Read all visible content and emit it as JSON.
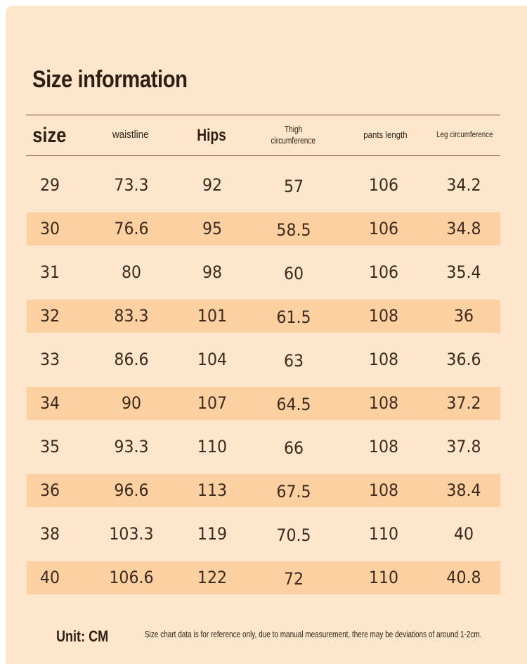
{
  "title": "Size information",
  "columns": {
    "size": "size",
    "waistline": "waistline",
    "hips": "Hips",
    "thigh_line1": "Thigh",
    "thigh_line2": "circumference",
    "pants_length": "pants length",
    "leg": "Leg circumference"
  },
  "rows": [
    {
      "size": "29",
      "waistline": "73.3",
      "hips": "92",
      "thigh": "57",
      "pants_length": "106",
      "leg": "34.2"
    },
    {
      "size": "30",
      "waistline": "76.6",
      "hips": "95",
      "thigh": "58.5",
      "pants_length": "106",
      "leg": "34.8"
    },
    {
      "size": "31",
      "waistline": "80",
      "hips": "98",
      "thigh": "60",
      "pants_length": "106",
      "leg": "35.4"
    },
    {
      "size": "32",
      "waistline": "83.3",
      "hips": "101",
      "thigh": "61.5",
      "pants_length": "108",
      "leg": "36"
    },
    {
      "size": "33",
      "waistline": "86.6",
      "hips": "104",
      "thigh": "63",
      "pants_length": "108",
      "leg": "36.6"
    },
    {
      "size": "34",
      "waistline": "90",
      "hips": "107",
      "thigh": "64.5",
      "pants_length": "108",
      "leg": "37.2"
    },
    {
      "size": "35",
      "waistline": "93.3",
      "hips": "110",
      "thigh": "66",
      "pants_length": "108",
      "leg": "37.8"
    },
    {
      "size": "36",
      "waistline": "96.6",
      "hips": "113",
      "thigh": "67.5",
      "pants_length": "108",
      "leg": "38.4"
    },
    {
      "size": "38",
      "waistline": "103.3",
      "hips": "119",
      "thigh": "70.5",
      "pants_length": "110",
      "leg": "40"
    },
    {
      "size": "40",
      "waistline": "106.6",
      "hips": "122",
      "thigh": "72",
      "pants_length": "110",
      "leg": "40.8"
    }
  ],
  "footer": {
    "unit": "Unit: CM",
    "note": "Size chart data is for reference only, due to manual measurement, there may be deviations of around 1-2cm."
  },
  "colors": {
    "background": "#fde6cb",
    "row_shade": "#fcd0a0",
    "text": "#2e1f14"
  }
}
